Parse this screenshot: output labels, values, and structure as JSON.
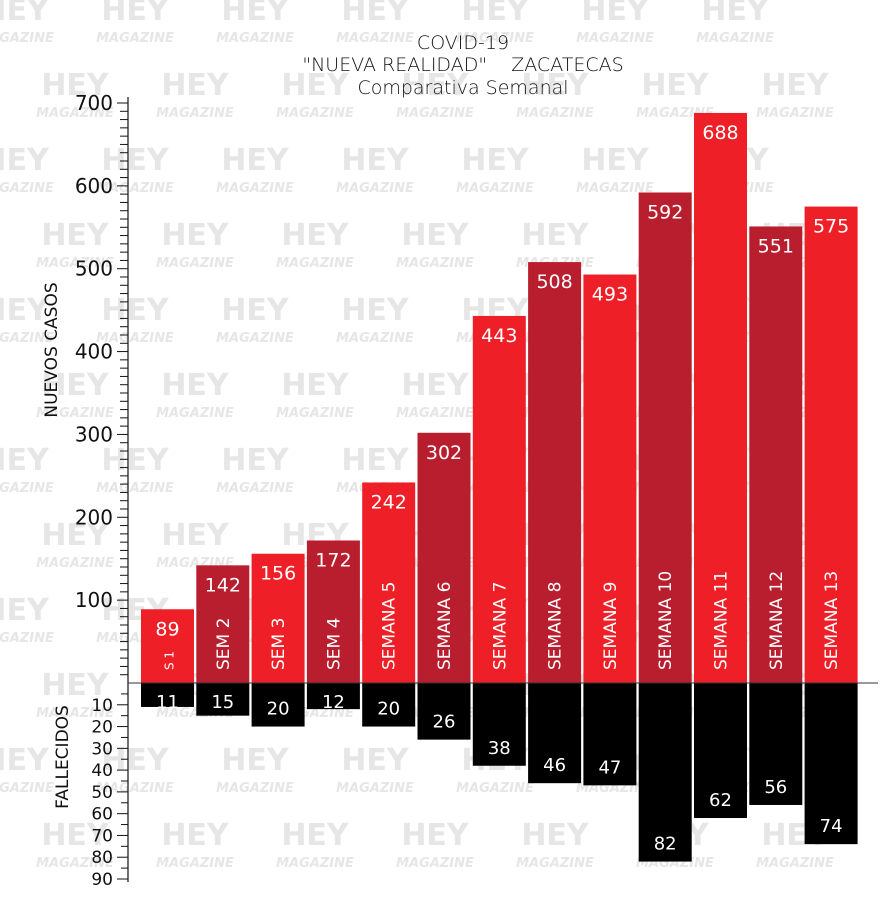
{
  "watermark": {
    "text_top": "HEY",
    "text_bottom": "MAGAZINE",
    "color": "#e6e6e6"
  },
  "chart_data": {
    "type": "bar",
    "title": "COVID-19",
    "subtitle": "\"NUEVA REALIDAD\"    ZACATECAS",
    "subtitle2": "Comparativa Semanal",
    "ylabel_top": "NUEVOS CASOS",
    "ylabel_bottom": "FALLECIDOS",
    "ylim_cases": [
      0,
      700
    ],
    "ylim_deaths": [
      0,
      90
    ],
    "yticks_cases": [
      100,
      200,
      300,
      400,
      500,
      600,
      700
    ],
    "yticks_deaths": [
      10,
      20,
      30,
      40,
      50,
      60,
      70,
      80,
      90
    ],
    "categories": [
      "S 1",
      "SEM 2",
      "SEM 3",
      "SEM 4",
      "SEMANA 5",
      "SEMANA 6",
      "SEMANA 7",
      "SEMANA 8",
      "SEMANA 9",
      "SEMANA 10",
      "SEMANA 11",
      "SEMANA 12",
      "SEMANA 13"
    ],
    "series": [
      {
        "values": [
          89,
          142,
          156,
          172,
          242,
          302,
          443,
          508,
          493,
          592,
          688,
          551,
          575
        ]
      },
      {
        "values": [
          11,
          15,
          20,
          12,
          20,
          26,
          38,
          46,
          47,
          82,
          62,
          56,
          74
        ]
      }
    ],
    "colors": {
      "bright_red": "#ee1f26",
      "dark_red": "#b81e2e",
      "black": "#000000"
    },
    "bar_color_pattern": [
      "bright_red",
      "dark_red",
      "bright_red",
      "dark_red",
      "bright_red",
      "dark_red",
      "bright_red",
      "dark_red",
      "bright_red",
      "dark_red",
      "bright_red",
      "dark_red",
      "bright_red"
    ],
    "grid": false,
    "legend": "none"
  }
}
